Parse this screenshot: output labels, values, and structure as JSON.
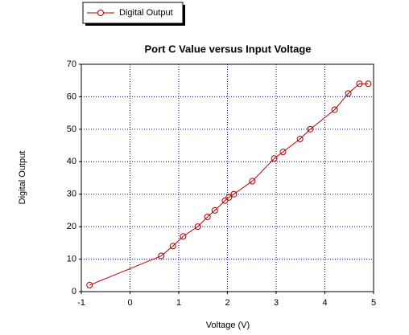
{
  "chart_data": {
    "type": "line",
    "title": "Port C Value versus Input Voltage",
    "x_label": "Voltage (V)",
    "y_label": "Digital Output",
    "x": [
      -0.83,
      0.64,
      0.88,
      1.09,
      1.39,
      1.59,
      1.74,
      1.95,
      2.03,
      2.13,
      2.51,
      2.96,
      3.14,
      3.49,
      3.7,
      4.2,
      4.48,
      4.71,
      4.89
    ],
    "series": [
      {
        "name": "Digital Output",
        "color": "#b00000",
        "values": [
          2,
          11,
          14,
          17,
          20,
          23,
          25,
          28,
          29,
          30,
          34,
          41,
          43,
          47,
          50,
          56,
          61,
          64,
          64
        ]
      }
    ],
    "xlim": [
      -1,
      5
    ],
    "xticks": [
      -1,
      0,
      1,
      2,
      3,
      4,
      5
    ],
    "ylim": [
      0,
      70
    ],
    "yticks": [
      0,
      10,
      20,
      30,
      40,
      50,
      60,
      70
    ],
    "grid": true,
    "legend": "top-left"
  }
}
